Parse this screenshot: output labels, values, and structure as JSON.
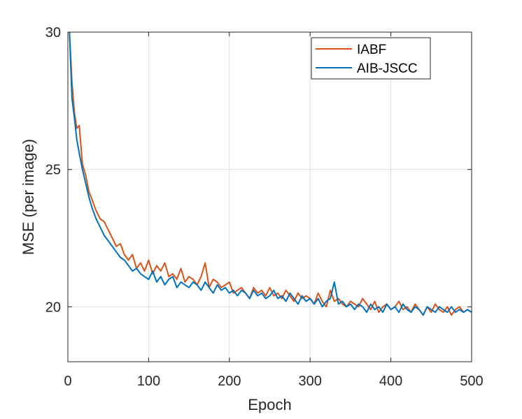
{
  "chart_data": {
    "type": "line",
    "title": "",
    "xlabel": "Epoch",
    "ylabel": "MSE (per image)",
    "xlim": [
      0,
      500
    ],
    "ylim": [
      18,
      30
    ],
    "xticks": [
      0,
      100,
      200,
      300,
      400,
      500
    ],
    "yticks": [
      20,
      25,
      30
    ],
    "xtick_labels": [
      "0",
      "100",
      "200",
      "300",
      "400",
      "500"
    ],
    "ytick_labels": [
      "20",
      "25",
      "30"
    ],
    "grid": true,
    "legend_position": "top-right",
    "series": [
      {
        "name": "IABF",
        "color": "#D95319",
        "x": [
          2,
          5,
          8,
          11,
          14,
          18,
          22,
          26,
          30,
          35,
          40,
          45,
          50,
          55,
          60,
          65,
          70,
          75,
          80,
          85,
          90,
          95,
          100,
          105,
          110,
          115,
          120,
          125,
          130,
          135,
          140,
          145,
          150,
          155,
          160,
          165,
          170,
          175,
          180,
          185,
          190,
          195,
          200,
          205,
          210,
          215,
          220,
          225,
          230,
          235,
          240,
          245,
          250,
          255,
          260,
          265,
          270,
          275,
          280,
          285,
          290,
          295,
          300,
          305,
          310,
          315,
          320,
          325,
          330,
          335,
          340,
          345,
          350,
          355,
          360,
          365,
          370,
          375,
          380,
          385,
          390,
          395,
          400,
          405,
          410,
          415,
          420,
          425,
          430,
          435,
          440,
          445,
          450,
          455,
          460,
          465,
          470,
          475,
          480,
          485,
          490,
          495,
          500
        ],
        "y": [
          30,
          28.2,
          27.1,
          26.5,
          26.6,
          25.2,
          24.8,
          24.2,
          23.9,
          23.5,
          23.2,
          23.1,
          22.8,
          22.5,
          22.2,
          22.3,
          21.9,
          21.7,
          21.9,
          21.4,
          21.6,
          21.3,
          21.7,
          21.2,
          21.5,
          21.3,
          21.6,
          21.1,
          21.2,
          21.0,
          21.4,
          20.9,
          21.1,
          21.0,
          20.8,
          21.1,
          21.6,
          20.7,
          21.0,
          20.9,
          20.7,
          20.8,
          20.9,
          20.5,
          20.6,
          20.7,
          20.5,
          20.3,
          20.7,
          20.5,
          20.6,
          20.4,
          20.7,
          20.4,
          20.5,
          20.3,
          20.6,
          20.4,
          20.2,
          20.5,
          20.3,
          20.4,
          20.3,
          20.1,
          20.5,
          20.2,
          20.0,
          20.6,
          20.2,
          20.3,
          20.1,
          20.0,
          20.2,
          20.1,
          20.0,
          20.3,
          20.1,
          19.9,
          20.2,
          19.8,
          20.0,
          20.1,
          19.9,
          20.0,
          20.2,
          19.9,
          20.0,
          19.8,
          20.1,
          19.9,
          19.7,
          20.0,
          19.8,
          20.1,
          19.9,
          19.8,
          20.0,
          19.7,
          19.9,
          20.0,
          19.8,
          19.9,
          19.8
        ]
      },
      {
        "name": "AIB-JSCC",
        "color": "#0072BD",
        "x": [
          2,
          5,
          8,
          11,
          14,
          18,
          22,
          26,
          30,
          35,
          40,
          45,
          50,
          55,
          60,
          65,
          70,
          75,
          80,
          85,
          90,
          95,
          100,
          105,
          110,
          115,
          120,
          125,
          130,
          135,
          140,
          145,
          150,
          155,
          160,
          165,
          170,
          175,
          180,
          185,
          190,
          195,
          200,
          205,
          210,
          215,
          220,
          225,
          230,
          235,
          240,
          245,
          250,
          255,
          260,
          265,
          270,
          275,
          280,
          285,
          290,
          295,
          300,
          305,
          310,
          315,
          320,
          325,
          330,
          335,
          340,
          345,
          350,
          355,
          360,
          365,
          370,
          375,
          380,
          385,
          390,
          395,
          400,
          405,
          410,
          415,
          420,
          425,
          430,
          435,
          440,
          445,
          450,
          455,
          460,
          465,
          470,
          475,
          480,
          485,
          490,
          495,
          500
        ],
        "y": [
          30,
          27.6,
          26.9,
          26.1,
          25.6,
          25.0,
          24.5,
          24.0,
          23.6,
          23.2,
          22.9,
          22.6,
          22.4,
          22.2,
          22.0,
          21.8,
          21.7,
          21.5,
          21.3,
          21.4,
          21.2,
          21.1,
          21.0,
          21.3,
          20.9,
          21.1,
          20.8,
          21.0,
          21.1,
          20.7,
          20.9,
          20.8,
          20.7,
          20.9,
          20.8,
          20.6,
          20.9,
          20.7,
          20.5,
          20.8,
          20.6,
          20.7,
          20.5,
          20.6,
          20.4,
          20.6,
          20.5,
          20.3,
          20.6,
          20.4,
          20.5,
          20.3,
          20.4,
          20.6,
          20.3,
          20.4,
          20.2,
          20.5,
          20.3,
          20.1,
          20.4,
          20.2,
          20.3,
          20.1,
          20.3,
          20.0,
          20.2,
          20.3,
          20.9,
          20.1,
          20.2,
          20.0,
          20.1,
          19.9,
          20.1,
          20.0,
          19.8,
          20.1,
          19.9,
          20.0,
          19.8,
          20.1,
          19.9,
          20.0,
          19.8,
          20.1,
          19.9,
          19.8,
          20.0,
          19.9,
          19.7,
          20.0,
          19.9,
          19.8,
          20.0,
          19.9,
          19.8,
          20.0,
          19.8,
          19.9,
          19.8,
          19.9,
          19.8
        ]
      }
    ]
  }
}
